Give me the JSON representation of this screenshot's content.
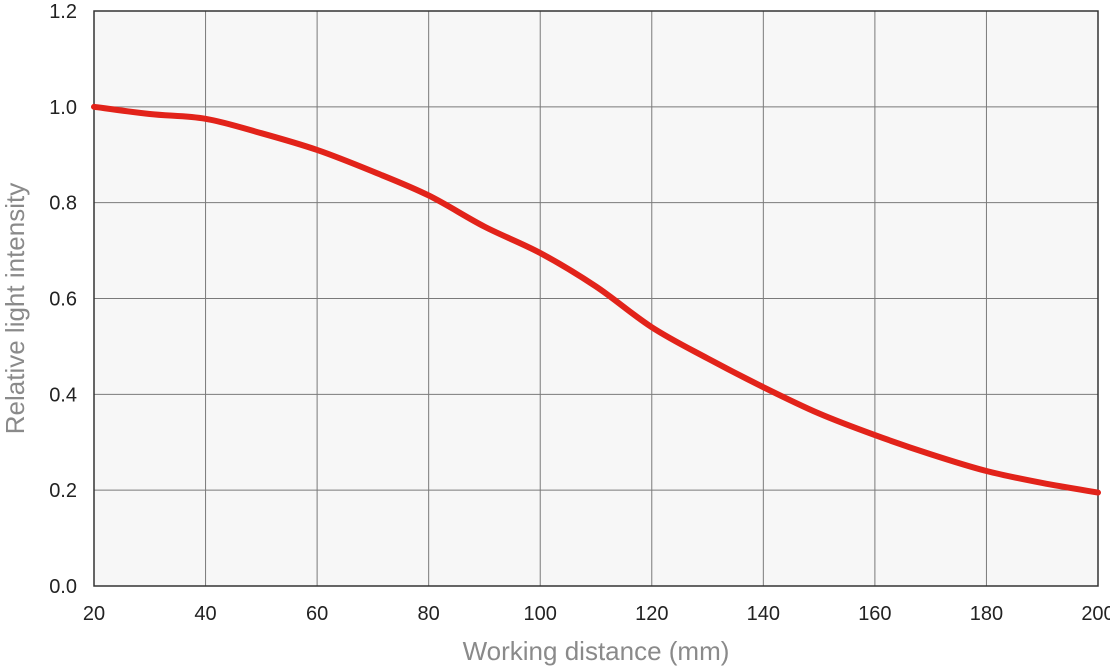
{
  "chart_data": {
    "type": "line",
    "title": "",
    "xlabel": "Working distance (mm)",
    "ylabel": "Relative light intensity",
    "xlim": [
      20,
      200
    ],
    "ylim": [
      0.0,
      1.2
    ],
    "x_ticks": [
      "20",
      "40",
      "60",
      "80",
      "100",
      "120",
      "140",
      "160",
      "180",
      "200"
    ],
    "y_ticks": [
      "0.0",
      "0.2",
      "0.4",
      "0.6",
      "0.8",
      "1.0",
      "1.2"
    ],
    "grid": true,
    "legend": "none",
    "colors": {
      "line": "#e2231a",
      "plot_background": "#f7f7f7",
      "grid": "#7a7a7a",
      "axis": "#333333"
    },
    "series": [
      {
        "x": [
          20,
          30,
          40,
          50,
          60,
          70,
          80,
          90,
          100,
          110,
          120,
          130,
          140,
          150,
          160,
          170,
          180,
          190,
          200
        ],
        "values": [
          1.0,
          0.985,
          0.975,
          0.945,
          0.91,
          0.865,
          0.815,
          0.75,
          0.695,
          0.625,
          0.54,
          0.475,
          0.415,
          0.36,
          0.315,
          0.275,
          0.24,
          0.215,
          0.195
        ]
      }
    ]
  }
}
